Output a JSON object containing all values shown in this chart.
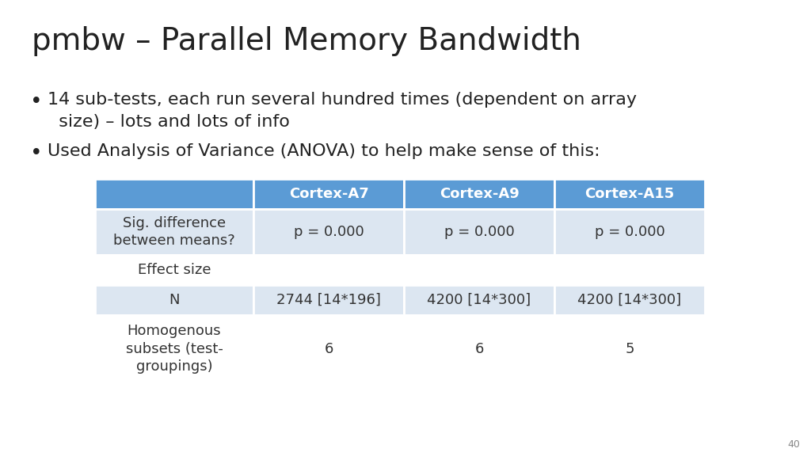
{
  "title": "pmbw – Parallel Memory Bandwidth",
  "bullets": [
    "14 sub-tests, each run several hundred times (dependent on array\n  size) – lots and lots of info",
    "Used Analysis of Variance (ANOVA) to help make sense of this:"
  ],
  "table": {
    "header": [
      "",
      "Cortex-A7",
      "Cortex-A9",
      "Cortex-A15"
    ],
    "rows": [
      [
        "Sig. difference\nbetween means?",
        "p = 0.000",
        "p = 0.000",
        "p = 0.000"
      ],
      [
        "Effect size",
        "",
        "",
        ""
      ],
      [
        "N",
        "2744 [14*196]",
        "4200 [14*300]",
        "4200 [14*300]"
      ],
      [
        "Homogenous\nsubsets (test-\ngroupings)",
        "6",
        "6",
        "5"
      ]
    ],
    "header_bg": "#5b9bd5",
    "header_fg": "#ffffff",
    "row_bg_odd": "#dce6f1",
    "row_bg_even": "#ffffff",
    "border_color": "#ffffff"
  },
  "slide_number": "40",
  "bg_color": "#ffffff",
  "title_fontsize": 28,
  "bullet_fontsize": 16,
  "table_fontsize": 13
}
